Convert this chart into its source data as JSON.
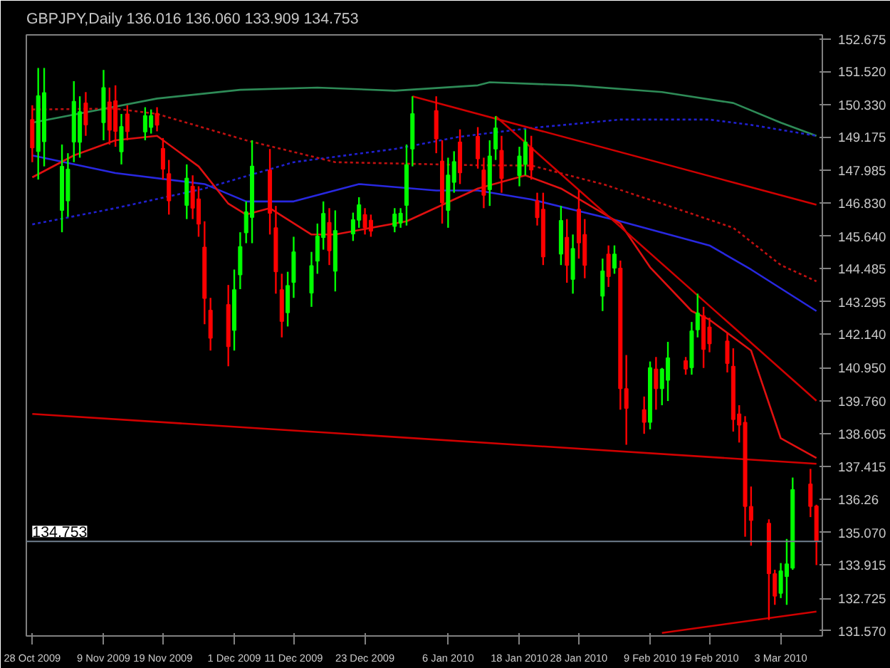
{
  "chart_data": {
    "type": "candlestick",
    "title": "GBPJPY,Daily  136.016 136.060 133.909 134.753",
    "x": [
      "2009-10-28",
      "2009-10-29",
      "2009-10-30",
      "2009-11-02",
      "2009-11-03",
      "2009-11-04",
      "2009-11-05",
      "2009-11-06",
      "2009-11-09",
      "2009-11-10",
      "2009-11-11",
      "2009-11-12",
      "2009-11-13",
      "2009-11-16",
      "2009-11-17",
      "2009-11-18",
      "2009-11-19",
      "2009-11-20",
      "2009-11-23",
      "2009-11-24",
      "2009-11-25",
      "2009-11-26",
      "2009-11-27",
      "2009-11-30",
      "2009-12-01",
      "2009-12-02",
      "2009-12-03",
      "2009-12-04",
      "2009-12-07",
      "2009-12-08",
      "2009-12-09",
      "2009-12-10",
      "2009-12-11",
      "2009-12-14",
      "2009-12-15",
      "2009-12-16",
      "2009-12-17",
      "2009-12-18",
      "2009-12-21",
      "2009-12-22",
      "2009-12-23",
      "2009-12-24",
      "2009-12-28",
      "2009-12-29",
      "2009-12-30",
      "2009-12-31",
      "2010-01-04",
      "2010-01-05",
      "2010-01-06",
      "2010-01-07",
      "2010-01-08",
      "2010-01-11",
      "2010-01-12",
      "2010-01-13",
      "2010-01-14",
      "2010-01-15",
      "2010-01-18",
      "2010-01-19",
      "2010-01-20",
      "2010-01-21",
      "2010-01-22",
      "2010-01-25",
      "2010-01-26",
      "2010-01-27",
      "2010-01-28",
      "2010-01-29",
      "2010-02-01",
      "2010-02-02",
      "2010-02-03",
      "2010-02-04",
      "2010-02-05",
      "2010-02-08",
      "2010-02-09",
      "2010-02-10",
      "2010-02-11",
      "2010-02-12",
      "2010-02-15",
      "2010-02-16",
      "2010-02-17",
      "2010-02-18",
      "2010-02-19",
      "2010-02-22",
      "2010-02-23",
      "2010-02-24",
      "2010-02-25",
      "2010-02-26",
      "2010-03-01",
      "2010-03-02",
      "2010-03-03",
      "2010-03-04",
      "2010-03-05",
      "2010-03-08",
      "2010-03-09"
    ],
    "ohlc": [
      [
        149.8,
        150.31,
        148.28,
        148.79
      ],
      [
        148.66,
        151.64,
        147.66,
        150.65
      ],
      [
        149.01,
        151.64,
        148.13,
        150.76
      ],
      [
        146.56,
        148.91,
        145.78,
        148.13
      ],
      [
        146.9,
        148.6,
        146.33,
        148.03
      ],
      [
        149.0,
        151.17,
        148.28,
        150.45
      ],
      [
        148.99,
        150.63,
        148.44,
        150.08
      ],
      [
        150.39,
        150.78,
        149.22,
        149.61
      ],
      [
        149.69,
        151.57,
        149.06,
        150.94
      ],
      [
        150.43,
        150.94,
        148.91,
        149.42
      ],
      [
        150.47,
        151.02,
        148.83,
        149.38
      ],
      [
        148.65,
        150.0,
        148.2,
        149.55
      ],
      [
        150.0,
        150.31,
        149.06,
        149.37
      ],
      [
        149.36,
        150.24,
        149.06,
        149.94
      ],
      [
        149.52,
        150.16,
        149.3,
        149.94
      ],
      [
        150.02,
        150.24,
        149.38,
        149.6
      ],
      [
        148.77,
        149.14,
        147.66,
        148.03
      ],
      [
        147.87,
        148.36,
        146.41,
        146.9
      ],
      [
        146.74,
        148.2,
        146.25,
        147.71
      ],
      [
        147.42,
        147.81,
        146.25,
        146.64
      ],
      [
        146.97,
        147.42,
        145.62,
        146.07
      ],
      [
        145.25,
        146.17,
        142.5,
        143.42
      ],
      [
        143.0,
        143.44,
        141.56,
        142.0
      ],
      [
        143.2,
        143.9,
        141.0,
        141.7
      ],
      [
        142.28,
        144.45,
        141.56,
        143.73
      ],
      [
        144.26,
        145.78,
        143.75,
        145.27
      ],
      [
        145.76,
        146.88,
        145.39,
        146.51
      ],
      [
        146.31,
        149.06,
        145.39,
        148.14
      ],
      [
        148.0,
        148.75,
        145.7,
        146.46
      ],
      [
        145.94,
        146.72,
        143.59,
        144.37
      ],
      [
        143.73,
        144.3,
        142.03,
        142.6
      ],
      [
        142.91,
        144.37,
        142.42,
        143.88
      ],
      [
        143.99,
        145.62,
        143.44,
        145.08
      ],
      [
        143.61,
        145.08,
        143.12,
        144.59
      ],
      [
        144.75,
        146.09,
        144.3,
        145.64
      ],
      [
        145.59,
        146.88,
        145.16,
        146.45
      ],
      [
        146.13,
        146.64,
        144.61,
        145.12
      ],
      [
        144.39,
        146.56,
        143.67,
        145.84
      ],
      [
        145.72,
        146.48,
        145.47,
        146.23
      ],
      [
        146.21,
        147.03,
        145.94,
        146.76
      ],
      [
        146.41,
        146.64,
        145.7,
        145.94
      ],
      [
        146.21,
        146.41,
        145.62,
        145.82
      ],
      [
        145.99,
        146.64,
        145.78,
        146.43
      ],
      [
        146.11,
        146.64,
        145.94,
        146.46
      ],
      [
        146.74,
        148.91,
        146.02,
        148.19
      ],
      [
        148.75,
        150.63,
        148.13,
        150.01
      ],
      [
        150.12,
        150.63,
        148.6,
        149.11
      ],
      [
        148.32,
        149.06,
        146.09,
        146.83
      ],
      [
        146.56,
        148.44,
        145.94,
        147.82
      ],
      [
        147.56,
        148.67,
        147.19,
        148.3
      ],
      [
        149.0,
        149.45,
        147.5,
        147.9
      ],
      [
        149.2,
        149.53,
        148.05,
        148.4
      ],
      [
        148.0,
        148.44,
        146.64,
        147.1
      ],
      [
        147.3,
        149.06,
        146.72,
        148.5
      ],
      [
        148.75,
        149.92,
        148.36,
        149.5
      ],
      [
        148.7,
        149.22,
        147.19,
        147.7
      ],
      [
        147.8,
        148.83,
        147.42,
        148.5
      ],
      [
        148.2,
        149.45,
        147.81,
        149.0
      ],
      [
        148.8,
        149.22,
        147.66,
        148.0
      ],
      [
        146.9,
        147.19,
        146.02,
        146.3
      ],
      [
        146.6,
        147.19,
        144.61,
        144.9
      ],
      [
        145.0,
        146.72,
        144.61,
        146.2
      ],
      [
        145.6,
        146.25,
        143.98,
        144.6
      ],
      [
        144.1,
        145.7,
        143.59,
        145.2
      ],
      [
        146.6,
        147.27,
        144.84,
        145.4
      ],
      [
        145.7,
        146.25,
        144.14,
        144.6
      ],
      [
        143.5,
        144.84,
        142.97,
        144.4
      ],
      [
        145.0,
        145.31,
        143.83,
        144.2
      ],
      [
        144.5,
        145.31,
        144.3,
        145.0
      ],
      [
        144.5,
        144.77,
        139.45,
        140.2
      ],
      [
        140.2,
        141.4,
        138.2,
        139.5
      ],
      [
        139.45,
        139.92,
        138.59,
        139.0
      ],
      [
        139.0,
        141.17,
        138.75,
        140.95
      ],
      [
        140.9,
        141.33,
        139.45,
        140.2
      ],
      [
        140.2,
        140.94,
        139.61,
        140.9
      ],
      [
        140.5,
        141.87,
        139.76,
        141.3
      ],
      [
        141.2,
        141.33,
        140.7,
        140.9
      ],
      [
        140.95,
        142.58,
        140.7,
        142.26
      ],
      [
        142.3,
        143.59,
        142.03,
        142.9
      ],
      [
        142.8,
        143.12,
        140.94,
        141.6
      ],
      [
        142.4,
        142.73,
        141.5,
        141.8
      ],
      [
        141.9,
        142.18,
        140.78,
        141.1
      ],
      [
        141.0,
        141.64,
        138.67,
        139.1
      ],
      [
        139.3,
        139.61,
        138.28,
        138.9
      ],
      [
        139.0,
        139.22,
        134.92,
        136.0
      ],
      [
        136.0,
        136.71,
        134.6,
        135.5
      ],
      [
        135.4,
        135.54,
        131.95,
        133.6
      ],
      [
        133.6,
        133.74,
        132.49,
        132.8
      ],
      [
        132.9,
        133.98,
        132.73,
        133.7
      ],
      [
        133.5,
        134.84,
        132.49,
        133.95
      ],
      [
        133.8,
        137.03,
        133.74,
        136.6
      ],
      [
        136.8,
        137.34,
        135.62,
        136.0
      ],
      [
        136.016,
        136.06,
        133.909,
        134.753
      ]
    ],
    "colors": [
      "#ff0000",
      "#00ff00",
      "#00ff00",
      "#00ff00",
      "#00ff00",
      "#00ff00",
      "#00ff00",
      "#ff0000",
      "#00ff00",
      "#ff0000",
      "#ff0000",
      "#00ff00",
      "#ff0000",
      "#00ff00",
      "#00ff00",
      "#ff0000",
      "#ff0000",
      "#ff0000",
      "#00ff00",
      "#ff0000",
      "#ff0000",
      "#ff0000",
      "#ff0000",
      "#ff0000",
      "#00ff00",
      "#00ff00",
      "#00ff00",
      "#00ff00",
      "#ff0000",
      "#ff0000",
      "#ff0000",
      "#00ff00",
      "#00ff00",
      "#00ff00",
      "#00ff00",
      "#00ff00",
      "#ff0000",
      "#00ff00",
      "#00ff00",
      "#00ff00",
      "#ff0000",
      "#ff0000",
      "#00ff00",
      "#00ff00",
      "#00ff00",
      "#00ff00",
      "#ff0000",
      "#ff0000",
      "#00ff00",
      "#00ff00",
      "#ff0000",
      "#ff0000",
      "#ff0000",
      "#00ff00",
      "#00ff00",
      "#ff0000",
      "#00ff00",
      "#00ff00",
      "#ff0000",
      "#ff0000",
      "#ff0000",
      "#00ff00",
      "#ff0000",
      "#00ff00",
      "#ff0000",
      "#ff0000",
      "#00ff00",
      "#ff0000",
      "#00ff00",
      "#ff0000",
      "#ff0000",
      "#ff0000",
      "#00ff00",
      "#ff0000",
      "#00ff00",
      "#00ff00",
      "#ff0000",
      "#00ff00",
      "#00ff00",
      "#ff0000",
      "#ff0000",
      "#ff0000",
      "#ff0000",
      "#ff0000",
      "#ff0000",
      "#ff0000",
      "#ff0000",
      "#ff0000",
      "#00ff00",
      "#00ff00",
      "#00ff00",
      "#ff0000",
      "#ff0000"
    ],
    "series": [
      {
        "type": "line",
        "color": "#2e8b57",
        "line_style": "solid",
        "x": [
          "2009-10-28",
          "2009-11-18",
          "2009-12-02",
          "2009-12-15",
          "2009-12-28",
          "2010-01-11",
          "2010-01-13",
          "2010-01-27",
          "2010-02-11",
          "2010-02-23",
          "2010-03-03",
          "2010-03-09"
        ],
        "values": [
          149.69,
          150.55,
          150.86,
          150.94,
          150.83,
          151.02,
          151.13,
          151.02,
          150.78,
          150.39,
          149.69,
          149.22
        ]
      },
      {
        "type": "line",
        "color": "#2020d0",
        "line_style": "dotted",
        "x": [
          "2009-10-28",
          "2009-11-11",
          "2009-11-26",
          "2009-12-11",
          "2009-12-28",
          "2010-01-08",
          "2010-01-20",
          "2010-02-04",
          "2010-02-19",
          "2010-02-26",
          "2010-03-09"
        ],
        "values": [
          146.06,
          146.64,
          147.34,
          148.28,
          148.75,
          149.19,
          149.5,
          149.8,
          149.8,
          149.61,
          149.22
        ]
      },
      {
        "type": "line",
        "color": "#c01010",
        "line_style": "dotted",
        "x": [
          "2009-10-28",
          "2009-11-11",
          "2009-11-18",
          "2009-12-03",
          "2009-12-18",
          "2010-01-11",
          "2010-01-20",
          "2010-02-01",
          "2010-02-11",
          "2010-02-23",
          "2010-03-03",
          "2010-03-09"
        ],
        "values": [
          150.16,
          150.19,
          150.0,
          149.06,
          148.28,
          148.17,
          148.16,
          147.5,
          146.8,
          145.94,
          144.61,
          144.03
        ]
      },
      {
        "type": "line",
        "color": "#2828e0",
        "line_style": "solid",
        "x": [
          "2009-10-28",
          "2009-11-11",
          "2009-11-26",
          "2009-12-03",
          "2009-12-11",
          "2009-12-22",
          "2010-01-04",
          "2010-01-11",
          "2010-01-20",
          "2010-02-04",
          "2010-02-19",
          "2010-02-26",
          "2010-03-09"
        ],
        "values": [
          148.52,
          147.89,
          147.5,
          146.88,
          146.88,
          147.5,
          147.27,
          147.27,
          146.95,
          146.17,
          145.31,
          144.45,
          142.97
        ]
      },
      {
        "type": "line",
        "color": "#e01010",
        "line_style": "solid",
        "x": [
          "2009-10-28",
          "2009-11-04",
          "2009-11-11",
          "2009-11-18",
          "2009-11-25",
          "2009-11-30",
          "2009-12-03",
          "2009-12-07",
          "2009-12-14",
          "2009-12-18",
          "2009-12-30",
          "2010-01-11",
          "2010-01-19",
          "2010-01-25",
          "2010-02-04",
          "2010-02-09",
          "2010-02-16",
          "2010-02-19",
          "2010-02-26",
          "2010-03-03",
          "2010-03-09"
        ],
        "values": [
          147.74,
          148.52,
          149.06,
          149.22,
          148.13,
          146.8,
          146.41,
          146.64,
          145.7,
          145.7,
          146.17,
          147.34,
          147.81,
          147.34,
          146.09,
          144.53,
          142.97,
          142.66,
          141.56,
          138.43,
          137.73
        ]
      },
      {
        "type": "line",
        "color": "#d00000",
        "line_style": "solid",
        "x": [
          "2009-12-31",
          "2010-03-09"
        ],
        "values": [
          150.63,
          146.76
        ]
      },
      {
        "type": "line",
        "color": "#d00000",
        "line_style": "solid",
        "x": [
          "2010-01-14",
          "2010-03-09"
        ],
        "values": [
          149.92,
          139.77
        ]
      },
      {
        "type": "line",
        "color": "#d00000",
        "line_style": "solid",
        "x": [
          "2009-10-28",
          "2010-03-09"
        ],
        "values": [
          139.3,
          137.52
        ]
      },
      {
        "type": "line",
        "color": "#d00000",
        "line_style": "solid",
        "x": [
          "2010-02-11",
          "2010-03-09"
        ],
        "values": [
          131.49,
          132.25
        ]
      }
    ],
    "ref_lines": [
      {
        "axis": "y",
        "value": 134.753,
        "label": "134.753",
        "color": "#708090"
      }
    ],
    "ylim": [
      131.38,
      152.82
    ],
    "yticks": [
      {
        "value": 131.57,
        "label": "131.570"
      },
      132.725,
      133.915,
      {
        "value": 135.07,
        "label": "135.070"
      },
      136.26,
      137.415,
      138.605,
      {
        "value": 139.76,
        "label": "139.760"
      },
      {
        "value": 140.95,
        "label": "140.950"
      },
      {
        "value": 142.14,
        "label": "142.140"
      },
      143.295,
      144.485,
      {
        "value": 145.64,
        "label": "145.640"
      },
      {
        "value": 146.83,
        "label": "146.830"
      },
      147.985,
      149.175,
      {
        "value": 150.33,
        "label": "150.330"
      },
      {
        "value": 151.52,
        "label": "151.520"
      },
      152.675
    ],
    "xlim": [
      "2009-10-27",
      "2010-03-10"
    ],
    "xticks": [
      {
        "value": "2009-10-28",
        "label": "28 Oct 2009"
      },
      {
        "value": "2009-11-09",
        "label": "9 Nov 2009"
      },
      {
        "value": "2009-11-19",
        "label": "19 Nov 2009"
      },
      {
        "value": "2009-12-01",
        "label": "1 Dec 2009"
      },
      {
        "value": "2009-12-11",
        "label": "11 Dec 2009"
      },
      {
        "value": "2009-12-23",
        "label": "23 Dec 2009"
      },
      {
        "value": "2010-01-06",
        "label": "6 Jan 2010"
      },
      {
        "value": "2010-01-18",
        "label": "18 Jan 2010"
      },
      {
        "value": "2010-01-28",
        "label": "28 Jan 2010"
      },
      {
        "value": "2010-02-09",
        "label": "9 Feb 2010"
      },
      {
        "value": "2010-02-19",
        "label": "19 Feb 2010"
      },
      {
        "value": "2010-03-03",
        "label": "3 Mar 2010"
      }
    ],
    "grid": false
  }
}
